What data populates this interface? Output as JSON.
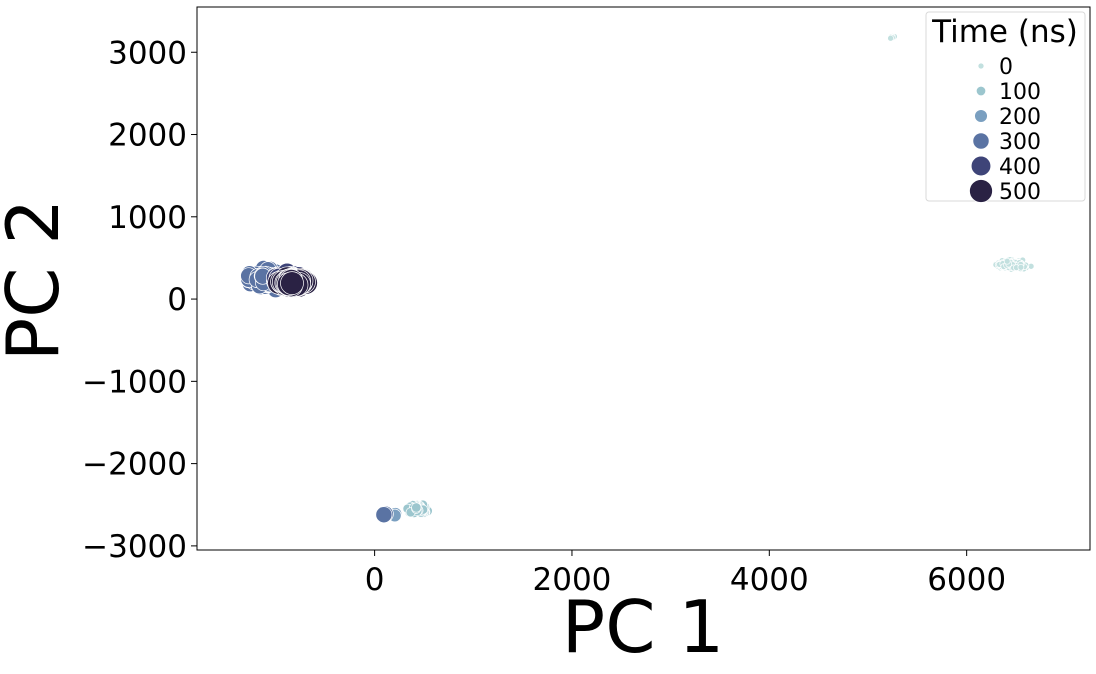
{
  "chart_data": {
    "type": "scatter",
    "title": "",
    "xlabel": "PC 1",
    "ylabel": "PC 2",
    "xlim": [
      -1800,
      7250
    ],
    "ylim": [
      -3050,
      3550
    ],
    "xticks": [
      0,
      2000,
      4000,
      6000
    ],
    "xtick_labels": [
      "0",
      "2000",
      "4000",
      "6000"
    ],
    "yticks": [
      -3000,
      -2000,
      -1000,
      0,
      1000,
      2000,
      3000
    ],
    "ytick_labels": [
      "−3000",
      "−2000",
      "−1000",
      "0",
      "1000",
      "2000",
      "3000"
    ],
    "grid": false,
    "legend": {
      "title": "Time (ns)",
      "placement": "top-right",
      "entries": [
        {
          "label": "0",
          "color": "#c2e0df"
        },
        {
          "label": "100",
          "color": "#9cc6ce"
        },
        {
          "label": "200",
          "color": "#7a9fc0"
        },
        {
          "label": "300",
          "color": "#5a73a3"
        },
        {
          "label": "400",
          "color": "#3e4478"
        },
        {
          "label": "500",
          "color": "#2a2244"
        }
      ]
    },
    "clusters": [
      {
        "time_ns": 0,
        "center": [
          6450,
          420
        ],
        "spread": [
          260,
          80
        ],
        "count": 260
      },
      {
        "time_ns": 0,
        "center": [
          5250,
          3190
        ],
        "spread": [
          60,
          40
        ],
        "count": 6
      },
      {
        "time_ns": 100,
        "center": [
          430,
          -2550
        ],
        "spread": [
          150,
          70
        ],
        "count": 200
      },
      {
        "time_ns": 200,
        "center": [
          200,
          -2620
        ],
        "spread": [
          60,
          40
        ],
        "count": 4
      },
      {
        "time_ns": 300,
        "center": [
          -1100,
          250
        ],
        "spread": [
          230,
          150
        ],
        "count": 200
      },
      {
        "time_ns": 300,
        "center": [
          100,
          -2620
        ],
        "spread": [
          40,
          30
        ],
        "count": 2
      },
      {
        "time_ns": 400,
        "center": [
          -850,
          240
        ],
        "spread": [
          230,
          90
        ],
        "count": 150
      },
      {
        "time_ns": 500,
        "center": [
          -820,
          200
        ],
        "spread": [
          200,
          70
        ],
        "count": 140
      }
    ]
  }
}
